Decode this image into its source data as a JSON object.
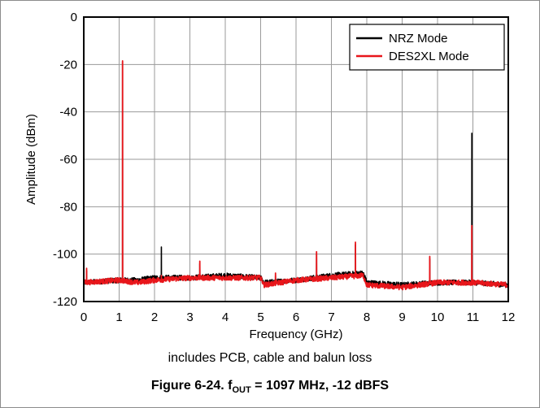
{
  "chart_data": {
    "type": "line",
    "title": "",
    "xlabel": "Frequency (GHz)",
    "ylabel": "Amplitude (dBm)",
    "xlim": [
      0,
      12
    ],
    "ylim": [
      -120,
      0
    ],
    "x_ticks": [
      "0",
      "1",
      "2",
      "3",
      "4",
      "5",
      "6",
      "7",
      "8",
      "9",
      "10",
      "11",
      "12"
    ],
    "y_ticks": [
      "0",
      "-20",
      "-40",
      "-60",
      "-80",
      "-100",
      "-120"
    ],
    "grid": true,
    "legend_position": "top-right",
    "series": [
      {
        "name": "NRZ Mode",
        "color": "#000000",
        "baseline": [
          [
            0,
            -112
          ],
          [
            1,
            -111
          ],
          [
            1.5,
            -111
          ],
          [
            2,
            -110
          ],
          [
            3,
            -110
          ],
          [
            4,
            -109
          ],
          [
            5,
            -110
          ],
          [
            5.1,
            -112
          ],
          [
            6,
            -111
          ],
          [
            7,
            -109
          ],
          [
            7.9,
            -108
          ],
          [
            8,
            -112
          ],
          [
            9,
            -113
          ],
          [
            10,
            -112
          ],
          [
            11,
            -112
          ],
          [
            12,
            -113
          ]
        ],
        "peaks": [
          [
            0.08,
            -107
          ],
          [
            1.097,
            -19
          ],
          [
            2.194,
            -97
          ],
          [
            3.28,
            -104
          ],
          [
            5.42,
            -109
          ],
          [
            6.58,
            -100
          ],
          [
            7.68,
            -96
          ],
          [
            9.78,
            -102
          ],
          [
            10.97,
            -49
          ]
        ]
      },
      {
        "name": "DES2XL Mode",
        "color": "#e8161b",
        "baseline": [
          [
            0,
            -112
          ],
          [
            1,
            -111
          ],
          [
            1.5,
            -112
          ],
          [
            2,
            -111
          ],
          [
            3,
            -110
          ],
          [
            4,
            -110
          ],
          [
            5,
            -110
          ],
          [
            5.1,
            -113
          ],
          [
            6,
            -111
          ],
          [
            7,
            -110
          ],
          [
            7.9,
            -109
          ],
          [
            8,
            -113
          ],
          [
            9,
            -114
          ],
          [
            10,
            -112
          ],
          [
            11,
            -112
          ],
          [
            12,
            -113
          ]
        ],
        "peaks": [
          [
            0.08,
            -106
          ],
          [
            1.097,
            -18.5
          ],
          [
            2.194,
            -109
          ],
          [
            3.28,
            -103
          ],
          [
            5.42,
            -108
          ],
          [
            6.58,
            -99
          ],
          [
            7.68,
            -95
          ],
          [
            9.78,
            -101
          ],
          [
            10.97,
            -88
          ]
        ]
      }
    ]
  },
  "note": "includes PCB, cable and balun loss",
  "caption": {
    "prefix": "Figure 6-24. f",
    "subscript": "OUT",
    "suffix": " = 1097 MHz, -12 dBFS"
  }
}
